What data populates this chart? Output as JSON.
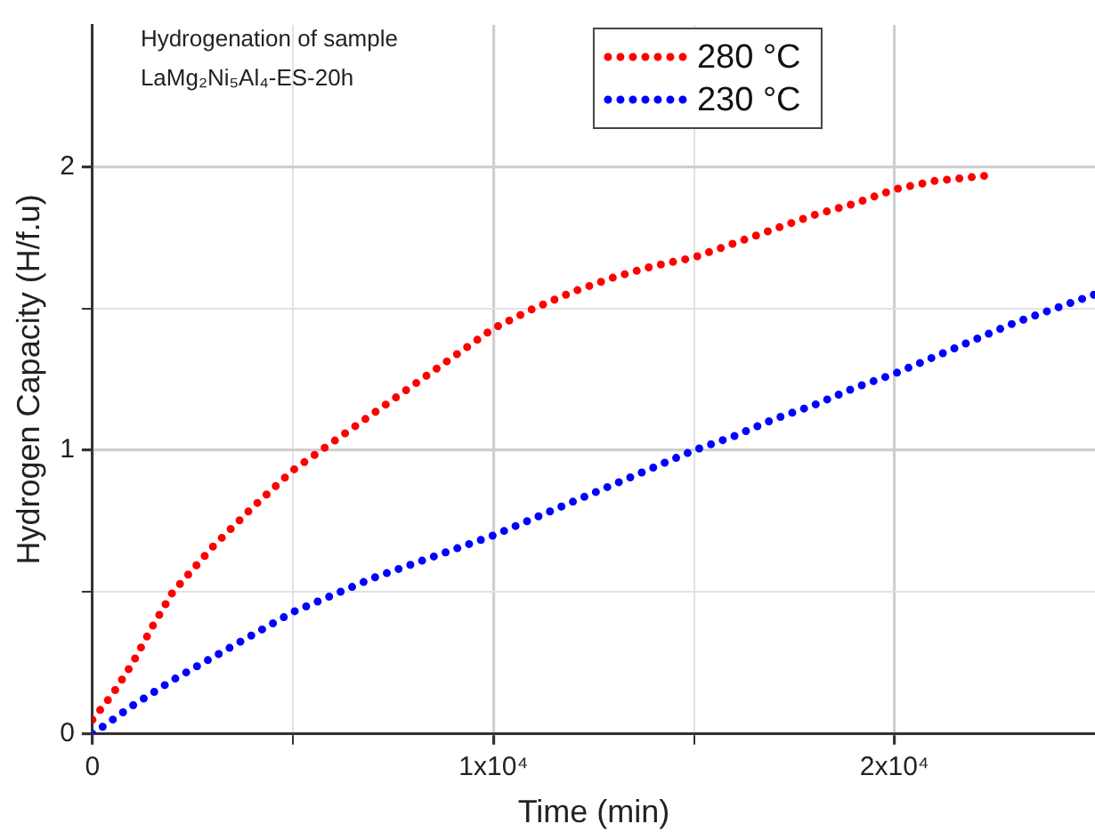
{
  "chart_data": {
    "type": "line",
    "xlabel": "Time (min)",
    "ylabel": "Hydrogen Capacity (H/f.u)",
    "annotations": [
      "Hydrogenation of sample",
      "LaMg₂Ni₅Al₄-ES-20h"
    ],
    "xlim": [
      0,
      25000
    ],
    "ylim": [
      0,
      2.5
    ],
    "xticks": [
      0,
      {
        "value": 5000,
        "label": null
      },
      {
        "value": 10000,
        "label": "1x10⁴"
      },
      {
        "value": 15000,
        "label": null
      },
      {
        "value": 20000,
        "label": "2x10⁴"
      }
    ],
    "yticks": [
      0,
      {
        "value": 0.5,
        "label": null
      },
      1,
      {
        "value": 1.5,
        "label": null
      },
      2
    ],
    "grid": true,
    "legend": "top",
    "marker": "none",
    "line_style": "dotted",
    "series": [
      {
        "name": "280 °C",
        "color": "#ff0000",
        "x": [
          0,
          500,
          1000,
          1500,
          2000,
          3000,
          4000,
          5000,
          6000,
          7000,
          8000,
          9000,
          10000,
          11000,
          12000,
          13000,
          14000,
          15000,
          16000,
          17000,
          18000,
          19000,
          20000,
          21000,
          22400
        ],
        "values": [
          0.05,
          0.14,
          0.25,
          0.38,
          0.5,
          0.66,
          0.8,
          0.93,
          1.03,
          1.13,
          1.23,
          1.33,
          1.43,
          1.5,
          1.56,
          1.61,
          1.65,
          1.68,
          1.73,
          1.78,
          1.83,
          1.87,
          1.92,
          1.95,
          1.97
        ]
      },
      {
        "name": "230 °C",
        "color": "#0000ff",
        "x": [
          0,
          1000,
          2000,
          3000,
          4000,
          5000,
          6000,
          7000,
          8000,
          9000,
          10000,
          11000,
          12000,
          13000,
          14000,
          15000,
          16000,
          17000,
          18000,
          19000,
          20000,
          21000,
          22000,
          23000,
          24000,
          25000
        ],
        "values": [
          0,
          0.1,
          0.19,
          0.27,
          0.35,
          0.43,
          0.49,
          0.55,
          0.6,
          0.65,
          0.7,
          0.76,
          0.82,
          0.88,
          0.94,
          1.0,
          1.05,
          1.11,
          1.16,
          1.22,
          1.27,
          1.33,
          1.39,
          1.45,
          1.5,
          1.55
        ]
      }
    ]
  }
}
